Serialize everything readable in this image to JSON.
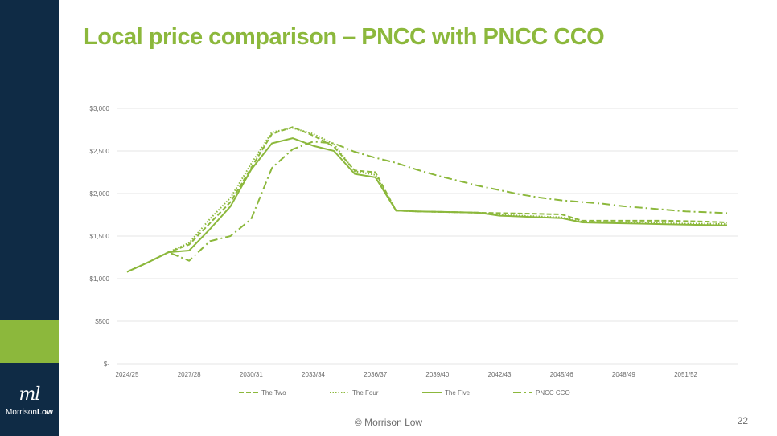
{
  "slide": {
    "title": "Local price comparison – PNCC with PNCC CCO",
    "footer": "© Morrison Low",
    "page_number": "22",
    "logo": {
      "mark": "ml",
      "text_regular": "Morrison",
      "text_bold": "Low"
    }
  },
  "colors": {
    "sidebar": "#0f2b45",
    "accent": "#8cb83c",
    "series": "#8cb83c",
    "grid": "#e6e6e6",
    "text": "#6b6b6b"
  },
  "chart_data": {
    "type": "line",
    "title": "",
    "xlabel": "",
    "ylabel": "",
    "ylim": [
      0,
      3000
    ],
    "y_ticks": [
      0,
      500,
      1000,
      1500,
      2000,
      2500,
      3000
    ],
    "y_tick_labels": [
      "$-",
      "$500",
      "$1,000",
      "$1,500",
      "$2,000",
      "$2,500",
      "$3,000"
    ],
    "grid": true,
    "legend_position": "bottom",
    "x": [
      "2024/25",
      "2025/26",
      "2026/27",
      "2027/28",
      "2028/29",
      "2029/30",
      "2030/31",
      "2031/32",
      "2032/33",
      "2033/34",
      "2034/35",
      "2035/36",
      "2036/37",
      "2037/38",
      "2038/39",
      "2039/40",
      "2040/41",
      "2041/42",
      "2042/43",
      "2043/44",
      "2044/45",
      "2045/46",
      "2046/47",
      "2047/48",
      "2048/49",
      "2049/50",
      "2050/51",
      "2051/52",
      "2052/53",
      "2053/54"
    ],
    "x_tick_labels": [
      "2024/25",
      "2027/28",
      "2030/31",
      "2033/34",
      "2036/37",
      "2039/40",
      "2042/43",
      "2045/46",
      "2048/49",
      "2051/52"
    ],
    "series": [
      {
        "name": "The Two",
        "dash": "dash",
        "values": [
          1080,
          1190,
          1310,
          1400,
          1650,
          1900,
          2300,
          2700,
          2780,
          2680,
          2550,
          2270,
          2250,
          1800,
          1790,
          1785,
          1780,
          1775,
          1770,
          1765,
          1760,
          1755,
          1680,
          1680,
          1680,
          1680,
          1680,
          1675,
          1670,
          1660
        ]
      },
      {
        "name": "The Four",
        "dash": "dot",
        "values": [
          1080,
          1190,
          1310,
          1420,
          1700,
          1950,
          2350,
          2720,
          2770,
          2700,
          2580,
          2260,
          2220,
          1800,
          1790,
          1785,
          1780,
          1775,
          1750,
          1740,
          1730,
          1720,
          1670,
          1665,
          1660,
          1655,
          1650,
          1645,
          1645,
          1640
        ]
      },
      {
        "name": "The Five",
        "dash": "solid",
        "values": [
          1080,
          1190,
          1310,
          1330,
          1580,
          1850,
          2280,
          2590,
          2650,
          2560,
          2500,
          2230,
          2190,
          1800,
          1790,
          1785,
          1780,
          1775,
          1740,
          1730,
          1720,
          1710,
          1660,
          1655,
          1650,
          1645,
          1640,
          1635,
          1630,
          1625
        ]
      },
      {
        "name": "PNCC CCO",
        "dash": "dashdot",
        "values": [
          1080,
          1190,
          1310,
          1210,
          1440,
          1500,
          1700,
          2300,
          2520,
          2610,
          2590,
          2490,
          2420,
          2360,
          2280,
          2210,
          2150,
          2090,
          2040,
          1990,
          1950,
          1920,
          1900,
          1880,
          1850,
          1830,
          1810,
          1790,
          1780,
          1770
        ]
      }
    ]
  }
}
